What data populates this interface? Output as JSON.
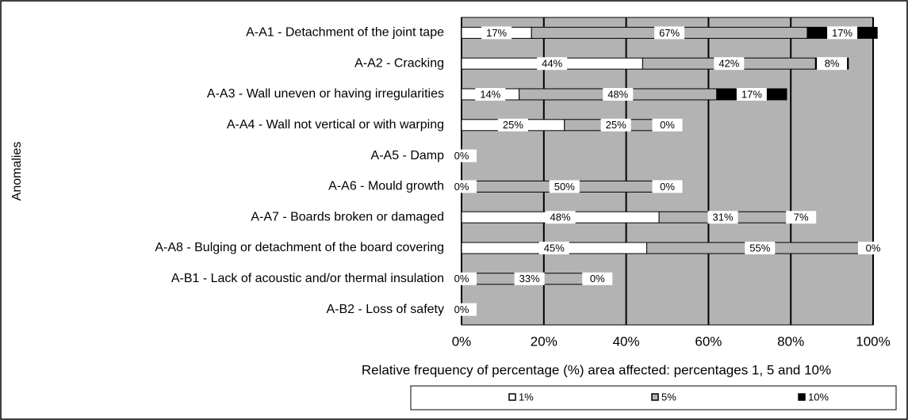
{
  "chart_data": {
    "type": "bar",
    "orientation": "horizontal",
    "stacked": true,
    "categories": [
      "A-A1 - Detachment of the joint tape",
      "A-A2 - Cracking",
      "A-A3 - Wall uneven or having irregularities",
      "A-A4 - Wall not vertical or with warping",
      "A-A5 - Damp",
      "A-A6 - Mould growth",
      "A-A7 - Boards broken or damaged",
      "A-A8 - Bulging or detachment of the board covering",
      "A-B1 - Lack of acoustic and/or thermal insulation",
      "A-B2 - Loss of safety"
    ],
    "series": [
      {
        "name": "1%",
        "color": "#ffffff",
        "values": [
          17,
          44,
          14,
          25,
          0,
          0,
          48,
          45,
          0,
          0
        ],
        "value_labels": [
          "17%",
          "44%",
          "14%",
          "25%",
          "0%",
          "0%",
          "48%",
          "45%",
          "0%",
          "0%"
        ]
      },
      {
        "name": "5%",
        "color": "#b3b3b3",
        "values": [
          67,
          42,
          48,
          25,
          null,
          50,
          31,
          55,
          33,
          null
        ],
        "value_labels": [
          "67%",
          "42%",
          "48%",
          "25%",
          null,
          "50%",
          "31%",
          "55%",
          "33%",
          null
        ]
      },
      {
        "name": "10%",
        "color": "#000000",
        "values": [
          17,
          8,
          17,
          0,
          null,
          0,
          7,
          0,
          0,
          null
        ],
        "value_labels": [
          "17%",
          "8%",
          "17%",
          "0%",
          null,
          "0%",
          "7%",
          "0%",
          "0%",
          null
        ]
      }
    ],
    "xlim": [
      0,
      100
    ],
    "xticks": [
      {
        "value": 0,
        "label": "0%"
      },
      {
        "value": 20,
        "label": "20%"
      },
      {
        "value": 40,
        "label": "40%"
      },
      {
        "value": 60,
        "label": "60%"
      },
      {
        "value": 80,
        "label": "80%"
      },
      {
        "value": 100,
        "label": "100%"
      }
    ],
    "xlabel": "Relative frequency of percentage (%) area affected: percentages 1, 5 and 10%",
    "ylabel": "Anomalies",
    "grid": true,
    "plot_background": "#b3b3b3",
    "legend": "bottom"
  }
}
